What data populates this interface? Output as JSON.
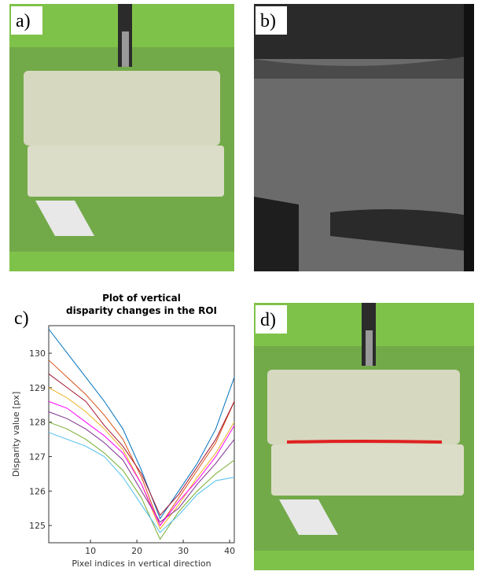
{
  "panels": {
    "a": "a)",
    "b": "b)",
    "c": "c)",
    "d": "d)"
  },
  "chart_data": {
    "type": "line",
    "title": [
      "Plot of vertical",
      "disparity changes in the ROI"
    ],
    "xlabel": "Pixel indices in vertical direction",
    "ylabel": "Disparity value [px]",
    "x": [
      1,
      5,
      9,
      13,
      17,
      21,
      25,
      29,
      33,
      37,
      41
    ],
    "series": [
      {
        "color": "#0072bd",
        "values": [
          130.7,
          130.0,
          129.3,
          128.6,
          127.8,
          126.6,
          125.2,
          126.0,
          126.8,
          127.8,
          129.3
        ]
      },
      {
        "color": "#d95319",
        "values": [
          129.8,
          129.3,
          128.8,
          128.2,
          127.5,
          126.4,
          125.0,
          125.8,
          126.6,
          127.4,
          128.6
        ]
      },
      {
        "color": "#edb120",
        "values": [
          129.0,
          128.7,
          128.3,
          127.8,
          127.2,
          126.2,
          124.9,
          125.6,
          126.4,
          127.1,
          128.0
        ]
      },
      {
        "color": "#7e2f8e",
        "values": [
          128.3,
          128.1,
          127.8,
          127.4,
          126.9,
          126.0,
          125.1,
          125.5,
          126.2,
          126.8,
          127.5
        ]
      },
      {
        "color": "#77ac30",
        "values": [
          128.0,
          127.8,
          127.5,
          127.1,
          126.6,
          125.8,
          124.6,
          125.4,
          126.0,
          126.5,
          126.9
        ]
      },
      {
        "color": "#4dbeee",
        "values": [
          127.7,
          127.5,
          127.3,
          127.0,
          126.4,
          125.6,
          124.8,
          125.3,
          125.9,
          126.3,
          126.4
        ]
      },
      {
        "color": "#a2142f",
        "values": [
          129.4,
          129.0,
          128.6,
          127.9,
          127.3,
          126.5,
          125.3,
          125.9,
          126.7,
          127.5,
          128.6
        ]
      },
      {
        "color": "#ff00ff",
        "values": [
          128.6,
          128.4,
          128.0,
          127.6,
          127.1,
          126.2,
          125.0,
          125.7,
          126.3,
          127.0,
          127.9
        ]
      }
    ],
    "xlim": [
      1,
      41
    ],
    "xticks": [
      10,
      20,
      30,
      40
    ],
    "ylim": [
      124.5,
      130.8
    ],
    "yticks": [
      125,
      126,
      127,
      128,
      129,
      130
    ]
  }
}
